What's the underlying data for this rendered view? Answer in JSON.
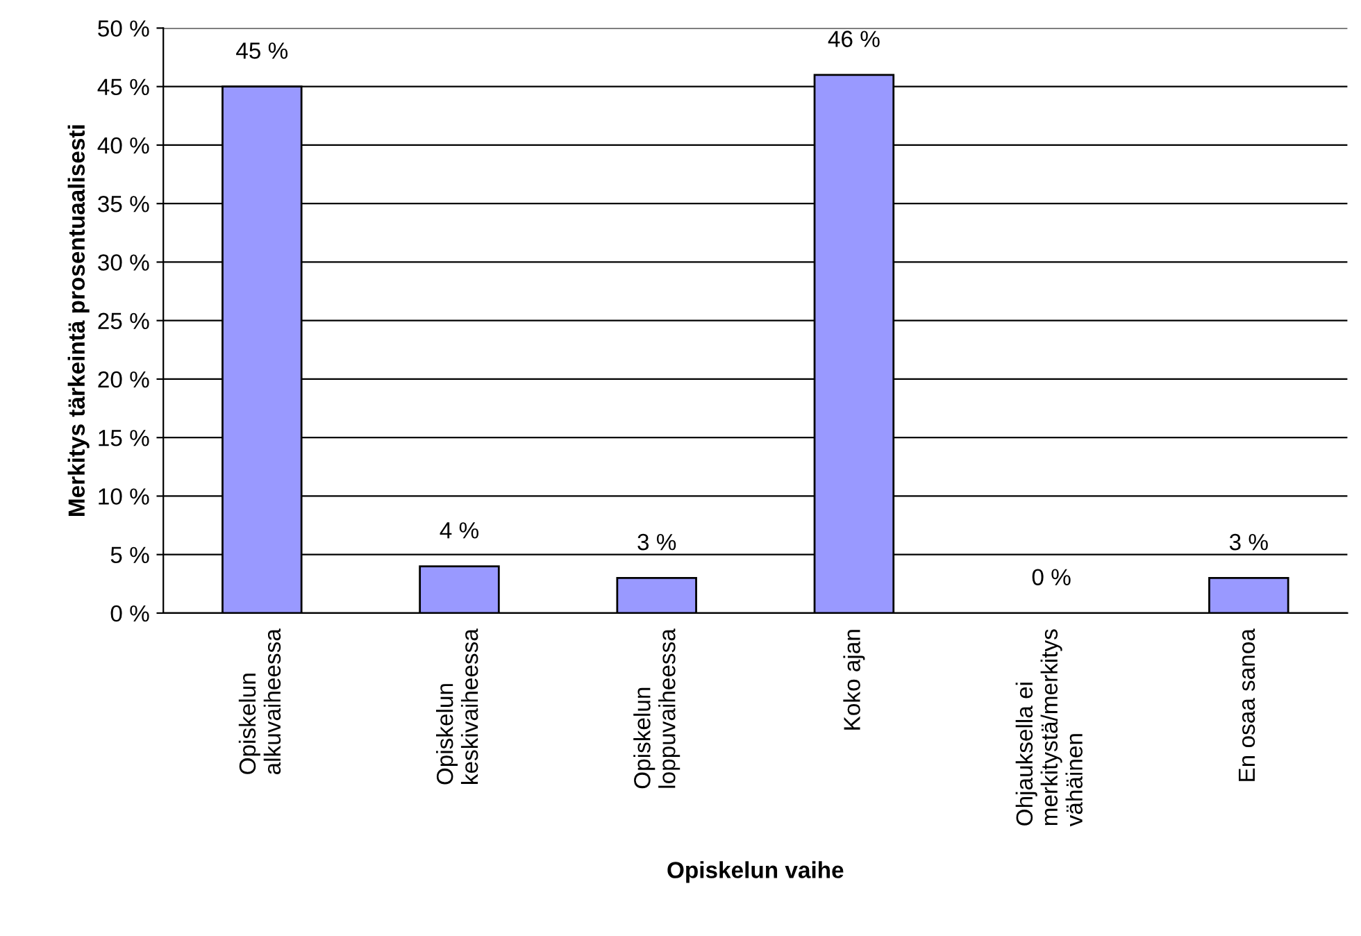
{
  "chart_data": {
    "type": "bar",
    "xlabel": "Opiskelun vaihe",
    "ylabel": "Merkitys tärkeintä prosentuaalisesti",
    "categories": [
      "Opiskelun\nalkuvaiheessa",
      "Opiskelun\nkeskivaiheessa",
      "Opiskelun\nloppuvaiheessa",
      "Koko ajan",
      "Ohjauksella ei\nmerkitystä/merkitys\nvähäinen",
      "En osaa sanoa"
    ],
    "values": [
      45,
      4,
      3,
      46,
      0,
      3
    ],
    "value_labels": [
      "45 %",
      "4 %",
      "3 %",
      "46 %",
      "0 %",
      "3 %"
    ],
    "color": "#9999ff",
    "ylim": [
      0,
      50
    ],
    "yticks": [
      {
        "value": 0,
        "label": "0 %"
      },
      {
        "value": 5,
        "label": "5 %"
      },
      {
        "value": 10,
        "label": "10 %"
      },
      {
        "value": 15,
        "label": "15 %"
      },
      {
        "value": 20,
        "label": "20 %"
      },
      {
        "value": 25,
        "label": "25 %"
      },
      {
        "value": 30,
        "label": "30 %"
      },
      {
        "value": 35,
        "label": "35 %"
      },
      {
        "value": 40,
        "label": "40 %"
      },
      {
        "value": 45,
        "label": "45 %"
      },
      {
        "value": 50,
        "label": "50 %"
      }
    ],
    "grid": "y",
    "legend": false
  }
}
